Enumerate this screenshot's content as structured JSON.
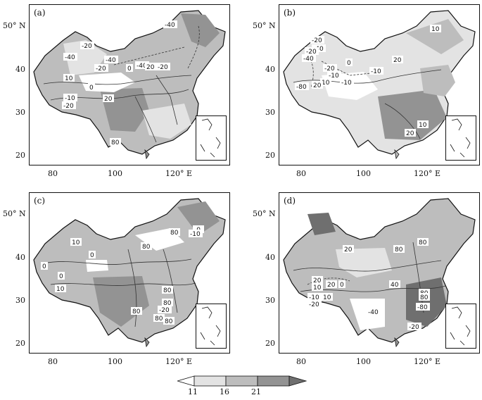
{
  "panels": [
    {
      "label": "(a)",
      "contour_labels": [
        "-40",
        "-20",
        "-40",
        "10",
        "-40",
        "-20",
        "-40",
        "20",
        "0",
        "-20",
        "0",
        "-10",
        "-20",
        "20",
        "80"
      ]
    },
    {
      "label": "(b)",
      "contour_labels": [
        "10",
        "-20",
        "-40",
        "-20",
        "-40",
        "20",
        "0",
        "-20",
        "-10",
        "10",
        "-80",
        "20",
        "-10",
        "-10",
        "10",
        "20"
      ]
    },
    {
      "label": "(c)",
      "contour_labels": [
        "-0",
        "-10",
        "80",
        "10",
        "0",
        "80",
        "0",
        "10",
        "0",
        "80",
        "80",
        "80",
        "-20",
        "80",
        "80"
      ]
    },
    {
      "label": "(d)",
      "contour_labels": [
        "80",
        "20",
        "80",
        "80",
        "20",
        "40",
        "10",
        "0",
        "20",
        "10",
        "-10",
        "-20",
        "80",
        "-80",
        "-40",
        "-20"
      ]
    }
  ],
  "axes": {
    "x_ticks": [
      "80",
      "100",
      "120° E"
    ],
    "y_ticks": [
      "50° N",
      "40",
      "30",
      "20"
    ]
  },
  "colorbar": {
    "labels": [
      "11",
      "16",
      "21"
    ],
    "colors": [
      "#ffffff",
      "#e3e3e3",
      "#bdbdbd",
      "#939393",
      "#6f6f6f"
    ]
  }
}
